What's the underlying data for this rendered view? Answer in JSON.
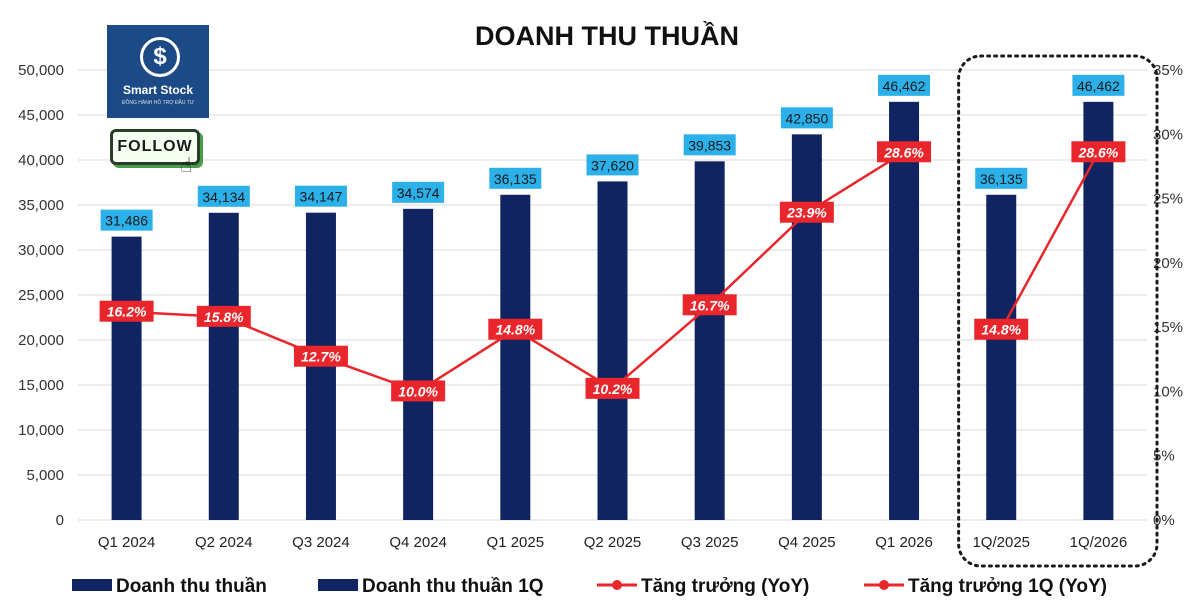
{
  "chart_data": {
    "type": "bar",
    "title": "DOANH THU THUẦN",
    "categories": [
      "Q1 2024",
      "Q2 2024",
      "Q3 2024",
      "Q4 2024",
      "Q1 2025",
      "Q2 2025",
      "Q3 2025",
      "Q4 2025",
      "Q1 2026",
      "1Q/2025",
      "1Q/2026"
    ],
    "series": [
      {
        "name": "Doanh thu thuần",
        "kind": "bar",
        "axis": "left",
        "color": "#0f2461",
        "values": [
          31486,
          34134,
          34147,
          34574,
          36135,
          37620,
          39853,
          42850,
          46462,
          null,
          null
        ],
        "labels": [
          "31,486",
          "34,134",
          "34,147",
          "34,574",
          "36,135",
          "37,620",
          "39,853",
          "42,850",
          "46,462",
          null,
          null
        ]
      },
      {
        "name": "Doanh thu thuần 1Q",
        "kind": "bar",
        "axis": "left",
        "color": "#0f2461",
        "values": [
          null,
          null,
          null,
          null,
          null,
          null,
          null,
          null,
          null,
          36135,
          46462
        ],
        "labels": [
          null,
          null,
          null,
          null,
          null,
          null,
          null,
          null,
          null,
          "36,135",
          "46,462"
        ]
      },
      {
        "name": "Tăng trưởng (YoY)",
        "kind": "line",
        "axis": "right",
        "color": "#e8262b",
        "values": [
          16.2,
          15.8,
          12.7,
          10.0,
          14.8,
          10.2,
          16.7,
          23.9,
          28.6,
          null,
          null
        ],
        "labels": [
          "16.2%",
          "15.8%",
          "12.7%",
          "10.0%",
          "14.8%",
          "10.2%",
          "16.7%",
          "23.9%",
          "28.6%",
          null,
          null
        ]
      },
      {
        "name": "Tăng trưởng 1Q (YoY)",
        "kind": "line",
        "axis": "right",
        "color": "#e8262b",
        "values": [
          null,
          null,
          null,
          null,
          null,
          null,
          null,
          null,
          null,
          14.8,
          28.6
        ],
        "labels": [
          null,
          null,
          null,
          null,
          null,
          null,
          null,
          null,
          null,
          "14.8%",
          "28.6%"
        ]
      }
    ],
    "y_left": {
      "ylim": [
        0,
        50000
      ],
      "ticks": [
        "0",
        "5,000",
        "10,000",
        "15,000",
        "20,000",
        "25,000",
        "30,000",
        "35,000",
        "40,000",
        "45,000",
        "50,000"
      ]
    },
    "y_right": {
      "ylim": [
        0,
        35
      ],
      "ticks": [
        "0%",
        "5%",
        "10%",
        "15%",
        "20%",
        "25%",
        "30%",
        "35%"
      ]
    },
    "grid": true,
    "legend_position": "bottom",
    "bar_label_color": "#2bb0ea",
    "rate_label_color": "#e8262b",
    "highlight_box": "dotted rounded box around 1Q/2025 and 1Q/2026"
  },
  "brand": {
    "logo_mark": "$",
    "logo_name": "Smart Stock",
    "logo_tagline": "ĐỒNG HÀNH HỖ TRỢ ĐẦU TƯ",
    "follow_label": "FOLLOW",
    "cursor_icon": "hand-pointer-icon"
  }
}
